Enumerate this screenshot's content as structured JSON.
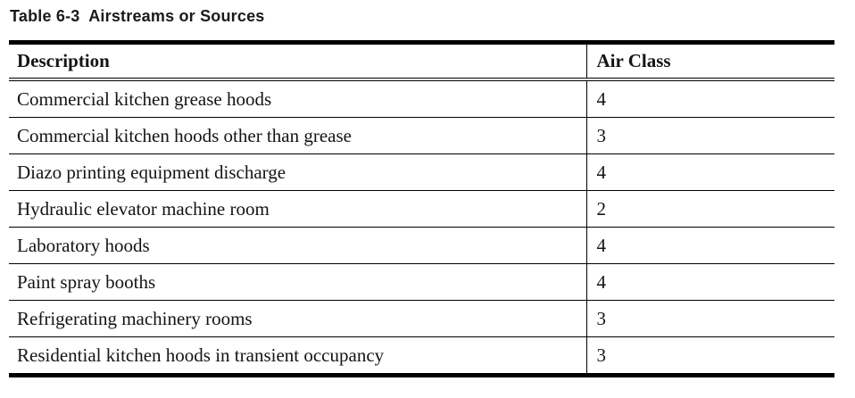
{
  "page": {
    "title": "Table 6-3  Airstreams or Sources"
  },
  "table": {
    "columns": [
      {
        "label": "Description"
      },
      {
        "label": "Air Class"
      }
    ],
    "rows": [
      {
        "description": "Commercial kitchen grease hoods",
        "air_class": "4"
      },
      {
        "description": "Commercial kitchen hoods other than grease",
        "air_class": "3"
      },
      {
        "description": "Diazo printing equipment discharge",
        "air_class": "4"
      },
      {
        "description": "Hydraulic elevator machine room",
        "air_class": "2"
      },
      {
        "description": "Laboratory hoods",
        "air_class": "4"
      },
      {
        "description": "Paint spray booths",
        "air_class": "4"
      },
      {
        "description": "Refrigerating machinery rooms",
        "air_class": "3"
      },
      {
        "description": "Residential kitchen hoods in transient occupancy",
        "air_class": "3"
      }
    ],
    "colors": {
      "border": "#000000",
      "text": "#141414",
      "background": "#ffffff"
    }
  }
}
